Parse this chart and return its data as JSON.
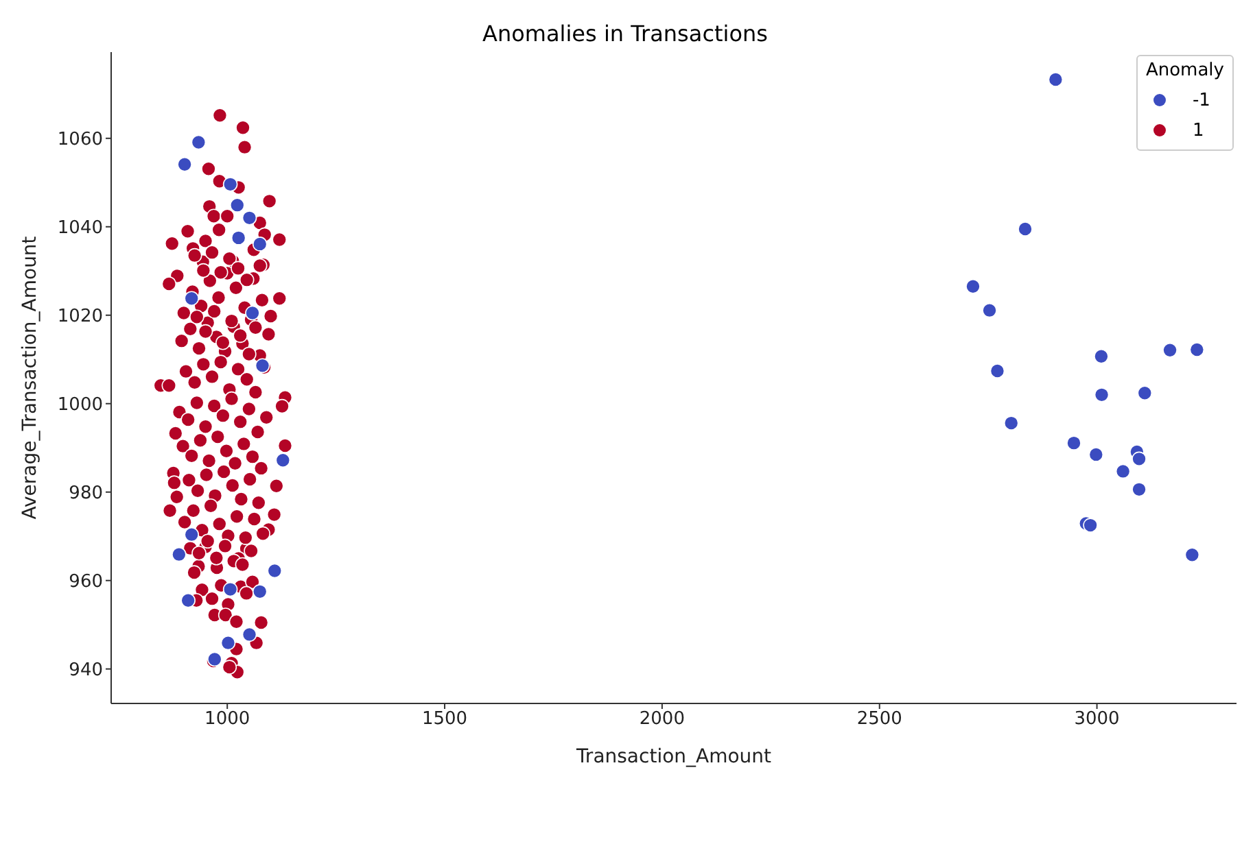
{
  "chart_data": {
    "type": "scatter",
    "title": "Anomalies in Transactions",
    "xlabel": "Transaction_Amount",
    "ylabel": "Average_Transaction_Amount",
    "legend_title": "Anomaly",
    "legend": "top right",
    "marker": "circle",
    "grid": false,
    "xlim": [
      733,
      3321
    ],
    "ylim": [
      932.2,
      1079.5
    ],
    "xticks": [
      1000,
      1500,
      2000,
      2500,
      3000
    ],
    "yticks": [
      940,
      960,
      980,
      1000,
      1020,
      1040,
      1060
    ],
    "series": [
      {
        "name": "-1",
        "color": "#3b4cc0",
        "x": [
          2905,
          2835,
          2715,
          2753,
          2771,
          2803,
          3010,
          3011,
          3110,
          3168,
          3230,
          2947,
          2998,
          3092,
          3097,
          3060,
          3097,
          2975,
          2985,
          3219,
          934,
          902,
          1023,
          1051,
          1026,
          1075,
          1007,
          918,
          1058,
          1081,
          1128,
          889,
          1109,
          1007,
          910,
          1075,
          1051,
          1002,
          971,
          918
        ],
        "values": [
          1073.3,
          1039.5,
          1026.5,
          1021.1,
          1007.4,
          995.6,
          1010.7,
          1002.0,
          1002.4,
          1012.1,
          1012.2,
          991.1,
          988.5,
          989.1,
          987.5,
          984.7,
          980.6,
          972.9,
          972.5,
          965.8,
          1059.1,
          1054.1,
          1044.9,
          1042.0,
          1037.5,
          1036.1,
          1049.6,
          1023.8,
          1020.5,
          1008.6,
          987.2,
          965.9,
          962.2,
          958.0,
          955.5,
          957.5,
          947.8,
          945.9,
          942.2,
          970.4
        ]
      },
      {
        "name": "1",
        "color": "#b40426",
        "x": [
          983,
          1036,
          1040,
          957,
          982,
          1026,
          1097,
          959,
          969,
          1000,
          1075,
          909,
          873,
          1120,
          950,
          921,
          981,
          1086,
          1061,
          885,
          866,
          1120,
          944,
          1013,
          1083,
          847,
          866,
          1133,
          1126,
          881,
          1133,
          876,
          878,
          1113,
          884,
          868,
          1108,
          1095,
          950,
          1044,
          934,
          924,
          976,
          1026,
          986,
          1031,
          1058,
          1044,
          942,
          929,
          965,
          1002,
          971,
          996,
          1021,
          1078,
          1067,
          1021,
          968,
          1010,
          1023,
          1005,
          900,
          920,
          940,
          960,
          980,
          1000,
          1020,
          1040,
          1060,
          1080,
          1100,
          895,
          915,
          935,
          955,
          975,
          995,
          1015,
          1035,
          1055,
          1075,
          1095,
          905,
          925,
          945,
          965,
          985,
          1005,
          1025,
          1045,
          1065,
          1085,
          890,
          910,
          930,
          950,
          970,
          990,
          1010,
          1030,
          1050,
          1070,
          1090,
          898,
          918,
          938,
          958,
          978,
          998,
          1018,
          1038,
          1058,
          1078,
          912,
          932,
          952,
          972,
          992,
          1012,
          1032,
          1052,
          1072,
          902,
          922,
          942,
          962,
          982,
          1002,
          1022,
          1042,
          1062,
          1082,
          915,
          935,
          955,
          975,
          995,
          1015,
          1035,
          1055,
          1075,
          925,
          945,
          965,
          985,
          1005,
          1025,
          1045,
          1065,
          930,
          950,
          970,
          990,
          1010,
          1030,
          1050
        ],
        "values": [
          1065.2,
          1062.4,
          1058.0,
          1053.1,
          1050.3,
          1048.9,
          1045.8,
          1044.6,
          1042.4,
          1042.4,
          1040.9,
          1039.0,
          1036.2,
          1037.1,
          1036.8,
          1035.1,
          1039.3,
          1038.2,
          1034.8,
          1028.9,
          1027.1,
          1023.8,
          1032.1,
          1032.2,
          1031.4,
          1004.1,
          1004.1,
          1001.4,
          999.4,
          993.3,
          990.5,
          984.3,
          982.1,
          981.4,
          978.9,
          975.8,
          974.9,
          971.5,
          967.6,
          967.2,
          963.2,
          961.8,
          962.9,
          965.0,
          958.9,
          958.6,
          959.7,
          957.1,
          957.9,
          955.5,
          955.9,
          954.6,
          952.2,
          952.2,
          950.7,
          950.5,
          945.9,
          944.5,
          941.8,
          941.3,
          939.3,
          940.4,
          1020.5,
          1025.3,
          1022.1,
          1027.8,
          1024.0,
          1029.5,
          1026.2,
          1021.7,
          1028.3,
          1023.4,
          1019.8,
          1014.2,
          1016.9,
          1012.5,
          1018.3,
          1015.1,
          1011.8,
          1017.4,
          1013.6,
          1019.0,
          1010.9,
          1015.7,
          1007.3,
          1004.8,
          1008.9,
          1006.1,
          1009.4,
          1003.2,
          1007.8,
          1005.5,
          1002.6,
          1008.2,
          998.1,
          996.4,
          1000.2,
          994.8,
          999.5,
          997.3,
          1001.1,
          995.9,
          998.8,
          993.6,
          996.9,
          990.4,
          988.2,
          991.7,
          987.1,
          992.5,
          989.3,
          986.5,
          990.9,
          988.0,
          985.4,
          982.7,
          980.3,
          983.9,
          979.2,
          984.6,
          981.5,
          978.4,
          982.9,
          977.6,
          973.2,
          975.8,
          971.4,
          976.9,
          972.8,
          970.1,
          974.5,
          969.7,
          973.9,
          970.6,
          967.3,
          966.2,
          968.9,
          965.1,
          967.8,
          964.4,
          963.6,
          966.7,
          1031.2,
          1033.5,
          1030.1,
          1034.2,
          1029.7,
          1032.8,
          1030.6,
          1028.0,
          1017.2,
          1019.6,
          1016.3,
          1020.9,
          1013.8,
          1018.7,
          1015.4,
          1011.2
        ]
      }
    ]
  }
}
